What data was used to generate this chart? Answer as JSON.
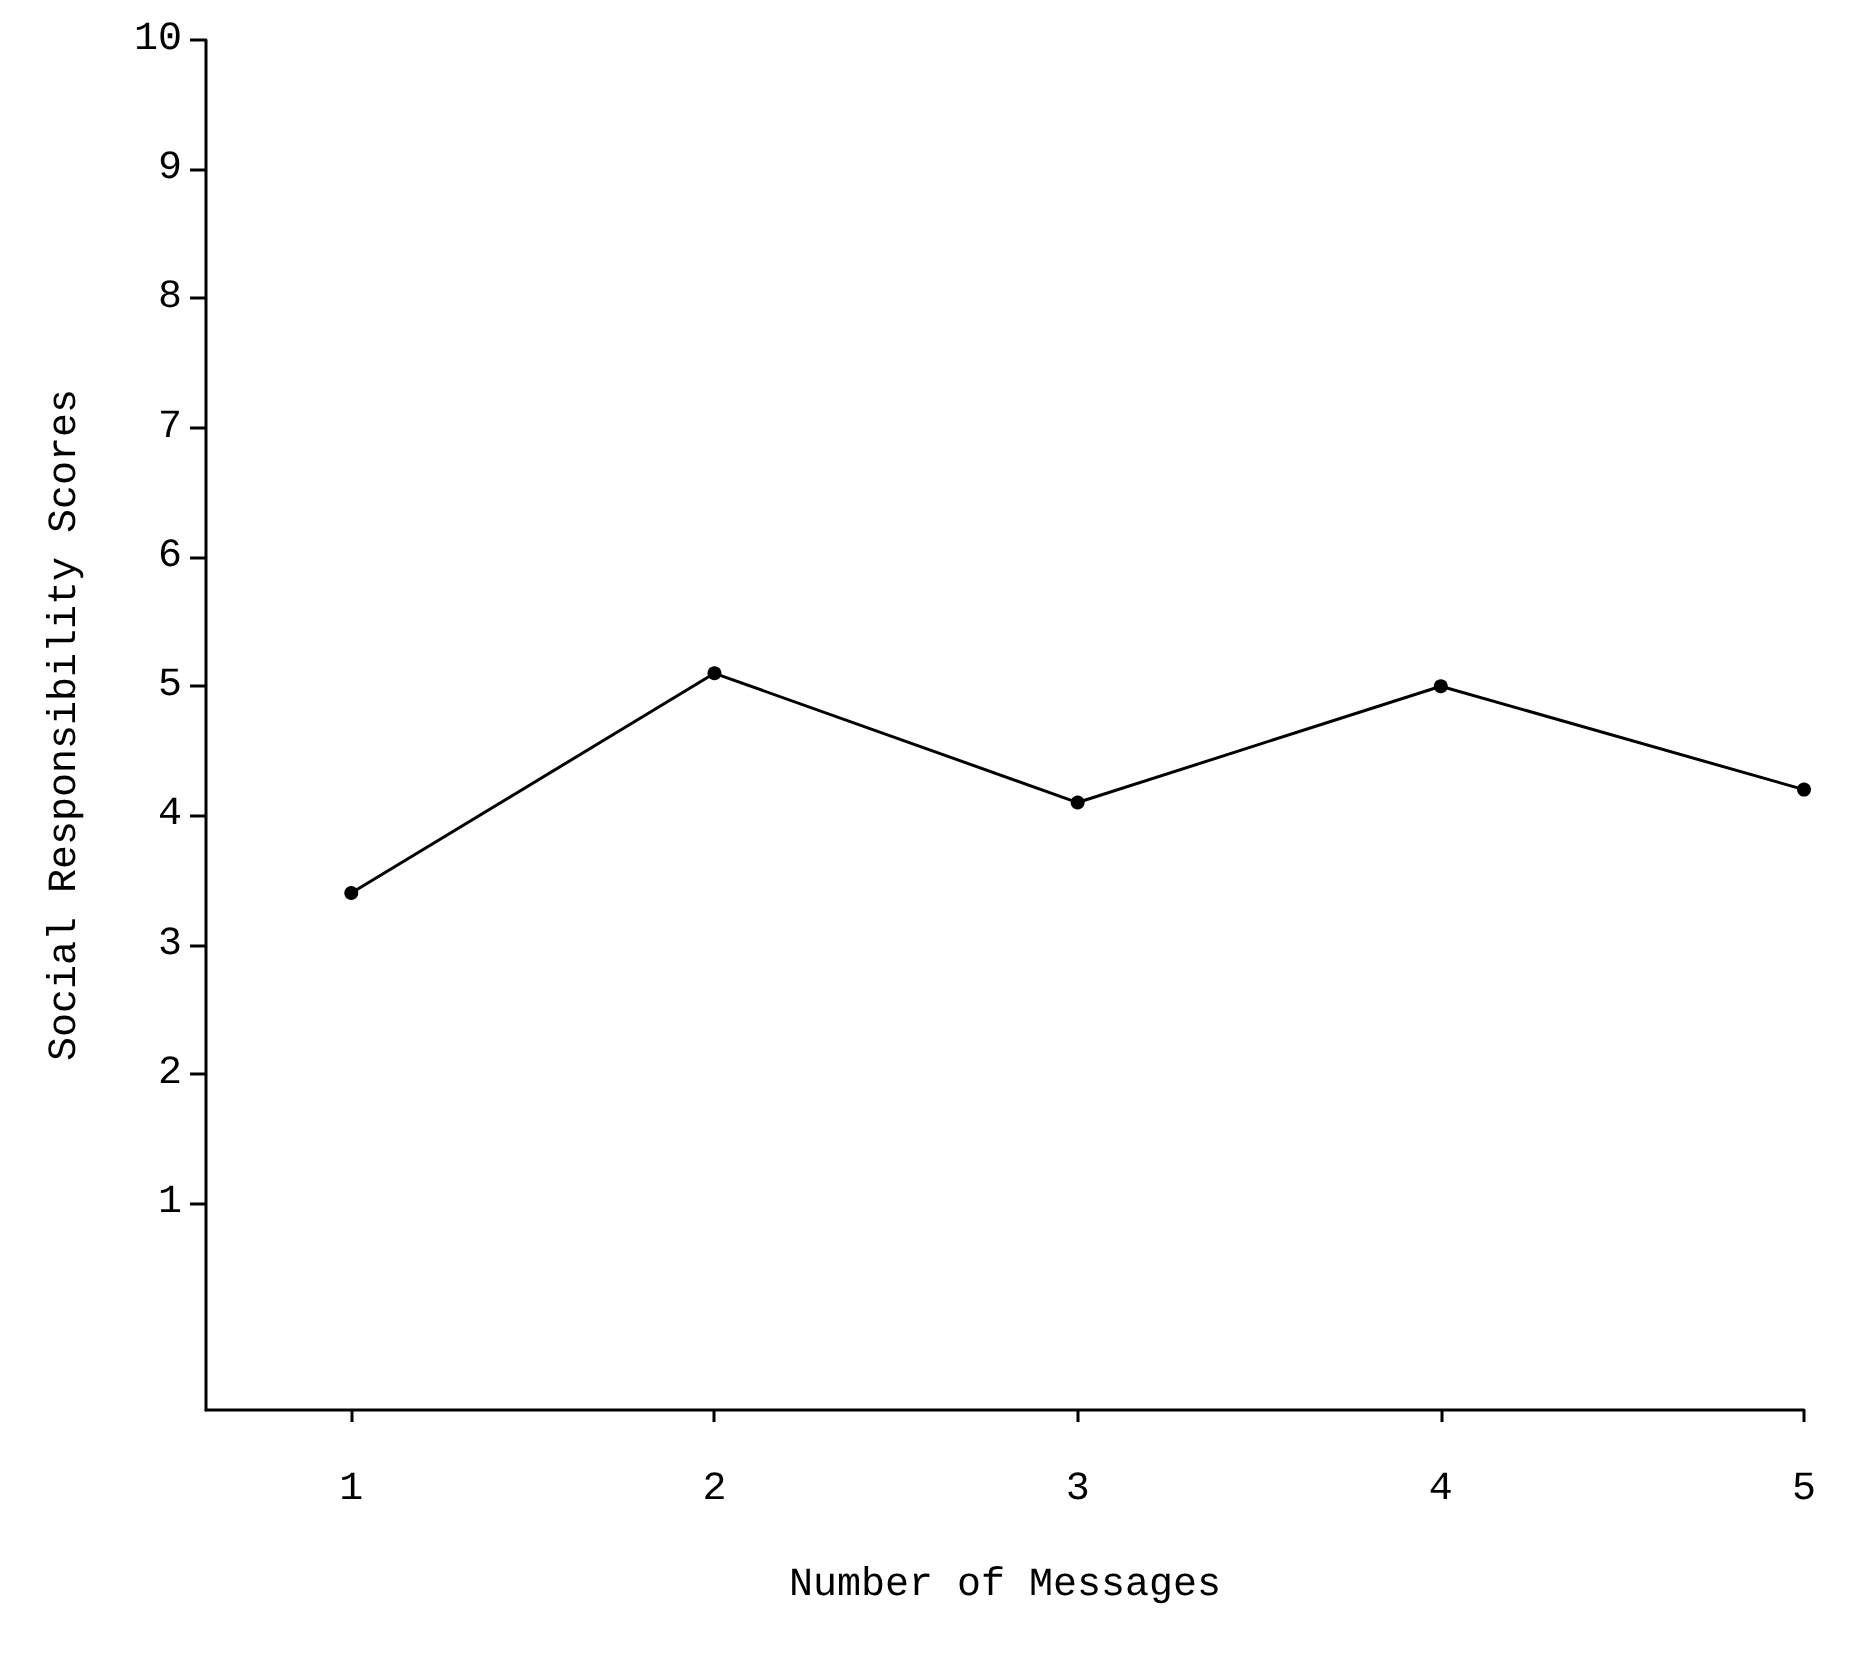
{
  "chart_data": {
    "type": "line",
    "xlabel": "Number of Messages",
    "ylabel": "Social Responsibility Scores",
    "x": [
      1,
      2,
      3,
      4,
      5
    ],
    "series": [
      {
        "color": "#000000",
        "values": [
          3.4,
          5.1,
          4.1,
          5.0,
          4.2
        ]
      }
    ],
    "xlim": [
      0.6,
      5
    ],
    "xticks": [
      1,
      2,
      3,
      4,
      5
    ],
    "ylim": [
      -0.6,
      10
    ],
    "yticks": [
      1,
      2,
      3,
      4,
      5,
      6,
      7,
      8,
      9,
      10
    ],
    "grid": false,
    "marker": "circle",
    "line_style": "solid"
  }
}
